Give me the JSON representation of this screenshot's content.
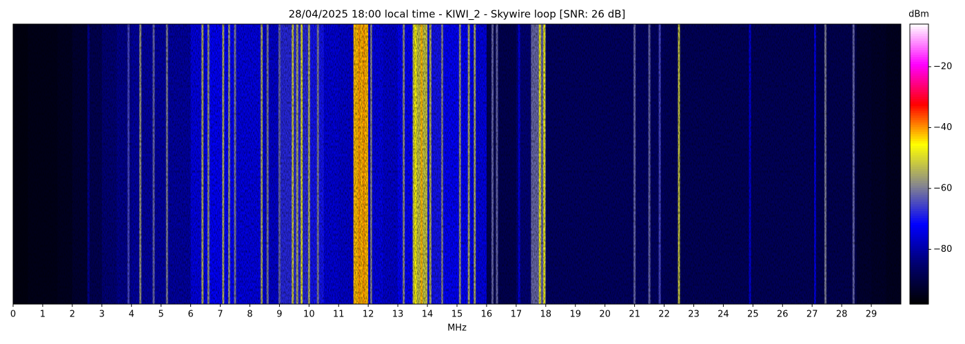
{
  "chart_data": {
    "type": "heatmap",
    "title": "28/04/2025 18:00 local time - KIWI_2 - Skywire loop [SNR: 26 dB]",
    "xlabel": "MHz",
    "colorbar_label": "dBm",
    "xlim": [
      0,
      30
    ],
    "xticks": [
      0,
      1,
      2,
      3,
      4,
      5,
      6,
      7,
      8,
      9,
      10,
      11,
      12,
      13,
      14,
      15,
      16,
      17,
      18,
      19,
      20,
      21,
      22,
      23,
      24,
      25,
      26,
      27,
      28,
      29
    ],
    "zlim": [
      -98,
      -6
    ],
    "zticks": [
      {
        "value": -20,
        "label": "−20"
      },
      {
        "value": -40,
        "label": "−40"
      },
      {
        "value": -60,
        "label": "−60"
      },
      {
        "value": -80,
        "label": "−80"
      }
    ],
    "colormap": [
      "#000000",
      "#00006e",
      "#0000ff",
      "#8a8a8a",
      "#ffff00",
      "#ff0000",
      "#ff00ff",
      "#ffffff"
    ],
    "bin_width": 0.5,
    "x": [
      0.25,
      0.75,
      1.25,
      1.75,
      2.25,
      2.75,
      3.25,
      3.75,
      4.25,
      4.75,
      5.25,
      5.75,
      6.25,
      6.75,
      7.25,
      7.75,
      8.25,
      8.75,
      9.25,
      9.75,
      10.25,
      10.75,
      11.25,
      11.75,
      12.25,
      12.75,
      13.25,
      13.75,
      14.25,
      14.75,
      15.25,
      15.75,
      16.25,
      16.75,
      17.25,
      17.75,
      18.25,
      18.75,
      19.25,
      19.75,
      20.25,
      20.75,
      21.25,
      21.75,
      22.25,
      22.75,
      23.25,
      23.75,
      24.25,
      24.75,
      25.25,
      25.75,
      26.25,
      26.75,
      27.25,
      27.75,
      28.25,
      28.75,
      29.25,
      29.75
    ],
    "values": [
      -96,
      -95,
      -95,
      -94,
      -92,
      -88,
      -84,
      -82,
      -80,
      -80,
      -80,
      -80,
      -74,
      -72,
      -72,
      -74,
      -74,
      -76,
      -68,
      -68,
      -70,
      -75,
      -76,
      -42,
      -74,
      -76,
      -72,
      -52,
      -70,
      -72,
      -72,
      -74,
      -88,
      -88,
      -84,
      -62,
      -86,
      -86,
      -86,
      -86,
      -86,
      -86,
      -86,
      -86,
      -87,
      -87,
      -87,
      -87,
      -87,
      -87,
      -87,
      -87,
      -87,
      -87,
      -88,
      -88,
      -88,
      -92,
      -93,
      -94
    ],
    "carriers": {
      "x": [
        2.55,
        3.9,
        4.3,
        4.75,
        5.2,
        6.4,
        6.6,
        7.1,
        7.3,
        7.5,
        8.4,
        8.6,
        9.0,
        9.45,
        9.6,
        9.75,
        10.0,
        10.3,
        11.7,
        11.85,
        12.1,
        13.2,
        13.6,
        13.8,
        14.1,
        14.5,
        15.1,
        15.4,
        15.6,
        16.2,
        16.35,
        17.1,
        17.8,
        17.95,
        21.0,
        21.5,
        21.85,
        22.5,
        24.9,
        27.1,
        27.45,
        28.4
      ],
      "values": [
        -82,
        -65,
        -58,
        -62,
        -60,
        -55,
        -58,
        -55,
        -58,
        -60,
        -55,
        -60,
        -62,
        -52,
        -55,
        -50,
        -55,
        -60,
        -40,
        -40,
        -60,
        -58,
        -45,
        -42,
        -55,
        -60,
        -58,
        -55,
        -55,
        -62,
        -62,
        -75,
        -48,
        -48,
        -62,
        -62,
        -65,
        -52,
        -75,
        -75,
        -60,
        -62
      ]
    }
  }
}
